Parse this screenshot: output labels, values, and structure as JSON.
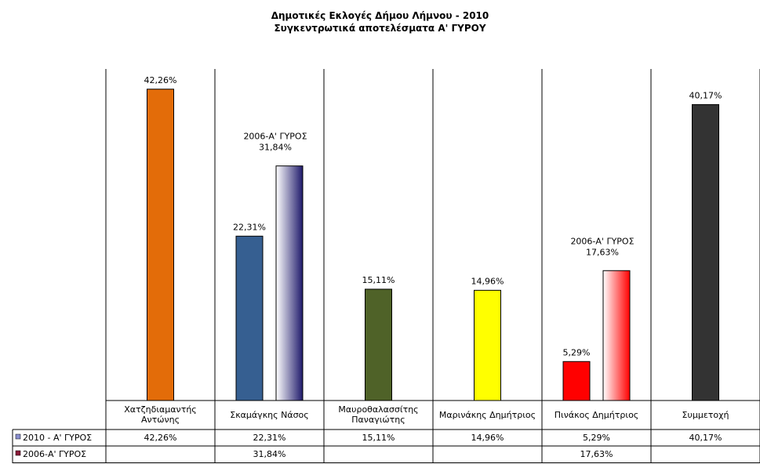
{
  "chart_data": {
    "type": "bar",
    "title": "Δημοτικές Εκλογές Δήμου Λήμνου - 2010",
    "subtitle": "Συγκεντρωτικά αποτελέσματα Α' ΓΥΡΟΥ",
    "categories": [
      [
        "Χατζηδιαμαντής",
        "Αντώνης"
      ],
      [
        "Σκαμάγκης Νάσος"
      ],
      [
        "Μαυροθαλασσίτης",
        "Παναγιώτης"
      ],
      [
        "Μαρινάκης Δημήτριος"
      ],
      [
        "Πινάκος Δημήτριος"
      ],
      [
        "Συμμετοχή"
      ]
    ],
    "series": [
      {
        "name": "2010 - Α' ΓΥΡΟΣ",
        "values": [
          42.26,
          22.31,
          15.11,
          14.96,
          5.29,
          40.17
        ],
        "labels": [
          "42,26%",
          "22,31%",
          "15,11%",
          "14,96%",
          "5,29%",
          "40,17%"
        ],
        "colors": [
          "#e36c09",
          "#365f91",
          "#4f6228",
          "#ffff00",
          "#ff0000",
          "#333333"
        ],
        "legend_color": "#8a8fd0"
      },
      {
        "name": "2006-Α' ΓΥΡΟΣ",
        "values": [
          null,
          31.84,
          null,
          null,
          17.63,
          null
        ],
        "labels": [
          "",
          "31,84%",
          "",
          "",
          "17,63%",
          ""
        ],
        "data_label_prefix": "2006-Α' ΓΥΡΟΣ",
        "gradient_colors": [
          "",
          "#1f1a6b",
          "",
          "",
          "#ff0000",
          ""
        ],
        "legend_color": "#8b1a3a"
      }
    ],
    "ylim": [
      0,
      45
    ],
    "grid": "vertical separators",
    "legend": "table-left"
  }
}
